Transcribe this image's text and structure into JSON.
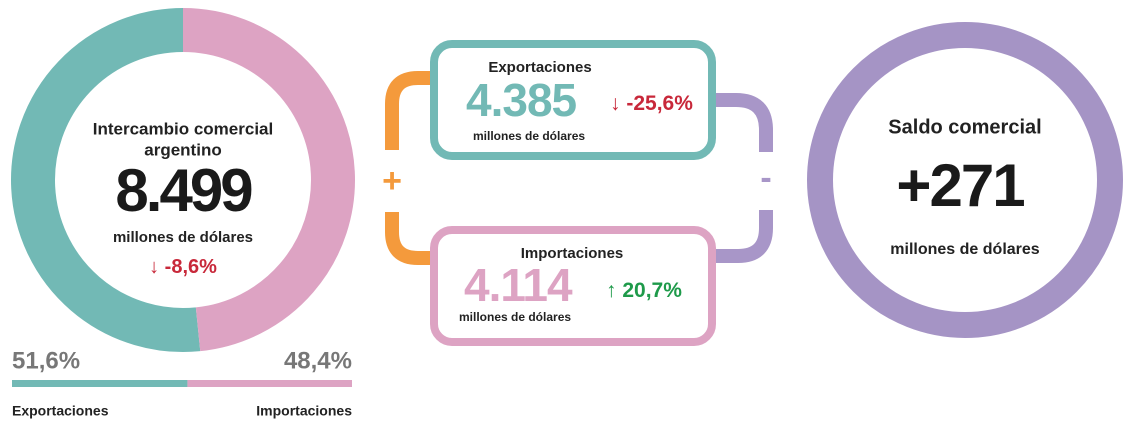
{
  "intercambio": {
    "title": "Intercambio comercial",
    "title2": "argentino",
    "value": "8.499",
    "unit": "millones de dólares",
    "arrow": "↓",
    "change": "-8,6%"
  },
  "shares": [
    {
      "name": "Exportaciones",
      "value": 51.6,
      "label": "51,6%",
      "color": "#72b9b5"
    },
    {
      "name": "Importaciones",
      "value": 48.4,
      "label": "48,4%",
      "color": "#dda3c3"
    }
  ],
  "exportaciones": {
    "title": "Exportaciones",
    "value": "4.385",
    "unit": "millones de dólares",
    "arrow": "↓",
    "change": "-25,6%"
  },
  "importaciones": {
    "title": "Importaciones",
    "value": "4.114",
    "unit": "millones de dólares",
    "arrow": "↑",
    "change": "20,7%"
  },
  "saldo": {
    "title": "Saldo comercial",
    "value": "+271",
    "unit": "millones de dólares"
  },
  "operators": [
    "+",
    "-"
  ]
}
